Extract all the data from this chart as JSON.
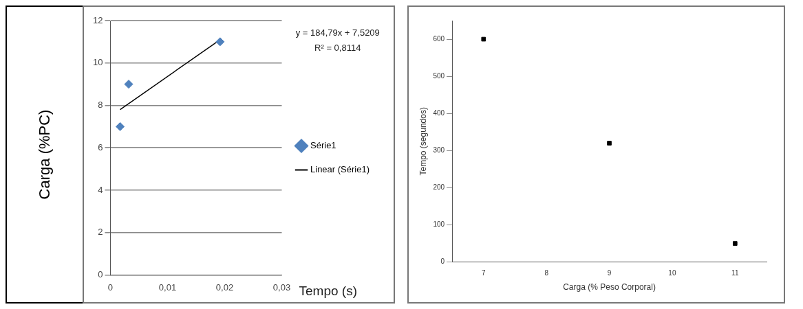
{
  "chart_data": [
    {
      "type": "scatter",
      "xlabel": "Tempo (s)",
      "ylabel": "Carga (%PC)",
      "xlim": [
        0,
        0.03
      ],
      "xticks": [
        0,
        {
          "value": 0.01,
          "label": "0,01"
        },
        {
          "value": 0.02,
          "label": "0,02"
        },
        {
          "value": 0.03,
          "label": "0,03"
        }
      ],
      "ylim": [
        0,
        12
      ],
      "yticks": [
        0,
        2,
        4,
        6,
        8,
        10,
        12
      ],
      "grid": "y",
      "legend": "right",
      "marker": "diamond",
      "annotations": [
        "y = 184,79x + 7,5209",
        "R² = 0,8114"
      ],
      "series": [
        {
          "name": "Série1",
          "color": "#4f81bd",
          "x": [
            0.0017,
            0.0032,
            0.0192
          ],
          "values": [
            7,
            9,
            11
          ]
        },
        {
          "name": "Linear (Série1)",
          "type": "line",
          "color": "#000000",
          "marker": "none",
          "x": [
            0.0017,
            0.0192
          ],
          "values": [
            7.8,
            11.1
          ]
        }
      ]
    },
    {
      "type": "scatter",
      "xlabel": "Carga (% Peso Corporal)",
      "ylabel": "Tempo (segundos)",
      "xlim": [
        6.5,
        11.5
      ],
      "xticks": [
        7,
        8,
        9,
        10,
        11
      ],
      "ylim": [
        0,
        650
      ],
      "yticks": [
        0,
        100,
        200,
        300,
        400,
        500,
        600
      ],
      "grid": false,
      "legend": false,
      "marker": "square",
      "series": [
        {
          "color": "#000000",
          "x": [
            7,
            9,
            11
          ],
          "values": [
            600,
            320,
            50
          ]
        }
      ]
    }
  ]
}
